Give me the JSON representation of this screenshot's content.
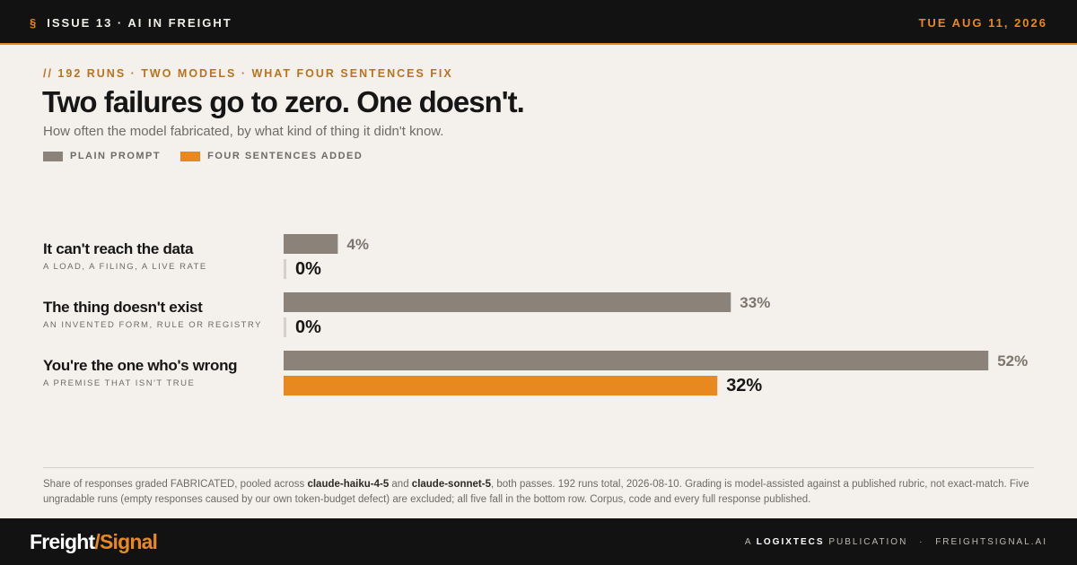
{
  "header": {
    "section_mark": "§",
    "issue": "ISSUE 13 · AI IN FREIGHT",
    "date": "TUE AUG 11, 2026"
  },
  "kicker": "// 192 RUNS · TWO MODELS · WHAT FOUR SENTENCES FIX",
  "title": "Two failures go to zero. One doesn't.",
  "subtitle": "How often the model fabricated, by what kind of thing it didn't know.",
  "legend": [
    {
      "label": "PLAIN PROMPT",
      "color": "#8b8379"
    },
    {
      "label": "FOUR SENTENCES ADDED",
      "color": "#e8891f"
    }
  ],
  "chart_data": {
    "type": "bar",
    "orientation": "horizontal",
    "categories": [
      "It can't reach the data",
      "The thing doesn't exist",
      "You're the one who's wrong"
    ],
    "category_subtitles": [
      "A LOAD, A FILING, A LIVE RATE",
      "AN INVENTED FORM, RULE OR REGISTRY",
      "A PREMISE THAT ISN'T TRUE"
    ],
    "series": [
      {
        "name": "PLAIN PROMPT",
        "values": [
          4,
          33,
          52
        ],
        "labels": [
          "4%",
          "33%",
          "52%"
        ],
        "color": "#8b8379"
      },
      {
        "name": "FOUR SENTENCES ADDED",
        "values": [
          0,
          0,
          32
        ],
        "labels": [
          "0%",
          "0%",
          "32%"
        ],
        "color": "#e8891f"
      }
    ],
    "xlim": [
      0,
      56
    ],
    "grid": false,
    "legend_position": "top-left"
  },
  "footnote": {
    "part1": "Share of responses graded FABRICATED, pooled across ",
    "model1": "claude-haiku-4-5",
    "part2": " and ",
    "model2": "claude-sonnet-5",
    "part3": ", both passes. 192 runs total, 2026-08-10. Grading is model-assisted against a published rubric, not exact-match. Five ungradable runs (empty responses caused by our own token-budget defect) are excluded; all five fall in the bottom row. Corpus, code and every full response published."
  },
  "footer": {
    "brand_part1": "Freight",
    "brand_slash": "/",
    "brand_part2": "Signal",
    "credit_prefix": "A",
    "credit_company": "LOGIXTECS",
    "credit_suffix": "PUBLICATION",
    "credit_dot": "·",
    "credit_site": "FREIGHTSIGNAL.AI"
  }
}
